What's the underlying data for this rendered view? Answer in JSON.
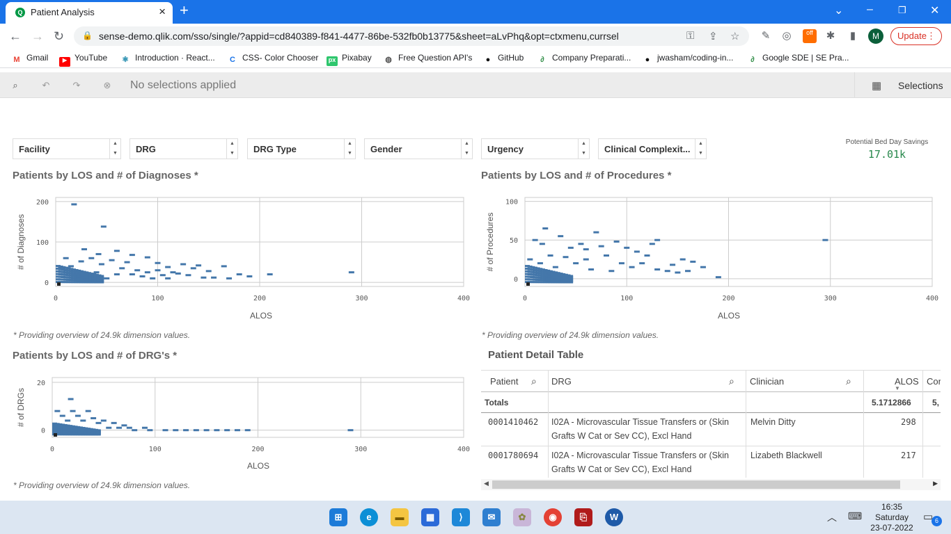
{
  "browser": {
    "tab_title": "Patient Analysis",
    "url": "sense-demo.qlik.com/sso/single/?appid=cd840389-f841-4477-86be-532fb0b13775&sheet=aLvPhq&opt=ctxmenu,currsel",
    "update_label": "Update",
    "avatar_letter": "M",
    "bookmarks": [
      "Gmail",
      "YouTube",
      "Introduction · React...",
      "CSS- Color Chooser",
      "Pixabay",
      "Free Question API's",
      "GitHub",
      "Company Preparati...",
      "jwasham/coding-in...",
      "Google SDE | SE Pra..."
    ]
  },
  "qlik_toolbar": {
    "no_selections": "No selections applied",
    "selections_label": "Selections"
  },
  "filters": [
    "Facility",
    "DRG",
    "DRG Type",
    "Gender",
    "Urgency",
    "Clinical Complexit..."
  ],
  "kpi": {
    "label": "Potential Bed Day Savings",
    "value": "17.01k"
  },
  "charts": {
    "diagnoses": {
      "title": "Patients by LOS and # of Diagnoses *",
      "note": "* Providing overview of 24.9k dimension values."
    },
    "procedures": {
      "title": "Patients by LOS and # of Procedures *",
      "note": "* Providing overview of 24.9k dimension values."
    },
    "drgs": {
      "title": "Patients by LOS and # of DRG's *",
      "note": "* Providing overview of 24.9k dimension values."
    }
  },
  "chart_data": [
    {
      "type": "scatter",
      "title": "Patients by LOS and # of Diagnoses *",
      "xlabel": "ALOS",
      "ylabel": "# of Diagnoses",
      "xlim": [
        0,
        400
      ],
      "ylim": [
        -10,
        210
      ],
      "x_ticks": [
        0,
        100,
        200,
        300,
        400
      ],
      "y_ticks": [
        0,
        100,
        200
      ],
      "points": [
        [
          18,
          193
        ],
        [
          47,
          138
        ],
        [
          28,
          82
        ],
        [
          60,
          78
        ],
        [
          42,
          70
        ],
        [
          75,
          68
        ],
        [
          10,
          60
        ],
        [
          35,
          60
        ],
        [
          90,
          62
        ],
        [
          55,
          55
        ],
        [
          25,
          52
        ],
        [
          70,
          50
        ],
        [
          100,
          48
        ],
        [
          125,
          45
        ],
        [
          140,
          42
        ],
        [
          165,
          40
        ],
        [
          110,
          38
        ],
        [
          135,
          35
        ],
        [
          150,
          28
        ],
        [
          120,
          22
        ],
        [
          180,
          20
        ],
        [
          190,
          15
        ],
        [
          155,
          12
        ],
        [
          170,
          10
        ],
        [
          85,
          15
        ],
        [
          95,
          10
        ],
        [
          5,
          35
        ],
        [
          15,
          40
        ],
        [
          45,
          45
        ],
        [
          65,
          35
        ],
        [
          80,
          30
        ],
        [
          100,
          30
        ],
        [
          115,
          25
        ],
        [
          130,
          18
        ],
        [
          145,
          12
        ],
        [
          105,
          18
        ],
        [
          210,
          20
        ],
        [
          290,
          25
        ],
        [
          30,
          8
        ],
        [
          50,
          10
        ],
        [
          60,
          20
        ],
        [
          40,
          25
        ],
        [
          20,
          20
        ],
        [
          75,
          20
        ],
        [
          90,
          25
        ],
        [
          110,
          10
        ]
      ]
    },
    {
      "type": "scatter",
      "title": "Patients by LOS and # of Procedures *",
      "xlabel": "ALOS",
      "ylabel": "# of Procedures",
      "xlim": [
        0,
        400
      ],
      "ylim": [
        -10,
        105
      ],
      "x_ticks": [
        0,
        100,
        200,
        300,
        400
      ],
      "y_ticks": [
        0,
        50,
        100
      ],
      "points": [
        [
          20,
          65
        ],
        [
          70,
          60
        ],
        [
          90,
          48
        ],
        [
          130,
          50
        ],
        [
          125,
          45
        ],
        [
          17,
          45
        ],
        [
          100,
          40
        ],
        [
          45,
          40
        ],
        [
          60,
          38
        ],
        [
          155,
          25
        ],
        [
          165,
          22
        ],
        [
          175,
          15
        ],
        [
          190,
          2
        ],
        [
          295,
          50
        ],
        [
          140,
          10
        ],
        [
          150,
          8
        ],
        [
          80,
          30
        ],
        [
          110,
          35
        ],
        [
          120,
          30
        ],
        [
          35,
          55
        ],
        [
          10,
          50
        ],
        [
          55,
          45
        ],
        [
          75,
          42
        ],
        [
          95,
          20
        ],
        [
          105,
          15
        ],
        [
          115,
          20
        ],
        [
          130,
          12
        ],
        [
          145,
          18
        ],
        [
          160,
          10
        ],
        [
          25,
          30
        ],
        [
          40,
          28
        ],
        [
          60,
          25
        ],
        [
          85,
          10
        ],
        [
          65,
          12
        ],
        [
          50,
          20
        ],
        [
          30,
          15
        ],
        [
          15,
          20
        ],
        [
          5,
          25
        ]
      ]
    },
    {
      "type": "scatter",
      "title": "Patients by LOS and # of DRG's *",
      "xlabel": "ALOS",
      "ylabel": "# of DRGs",
      "xlim": [
        0,
        400
      ],
      "ylim": [
        -3,
        22
      ],
      "x_ticks": [
        0,
        100,
        200,
        300,
        400
      ],
      "y_ticks": [
        0,
        20
      ],
      "points": [
        [
          18,
          13
        ],
        [
          5,
          8
        ],
        [
          20,
          8
        ],
        [
          35,
          8
        ],
        [
          10,
          6
        ],
        [
          25,
          6
        ],
        [
          40,
          5
        ],
        [
          15,
          4
        ],
        [
          30,
          4
        ],
        [
          50,
          4
        ],
        [
          60,
          3
        ],
        [
          45,
          3
        ],
        [
          70,
          2
        ],
        [
          90,
          1
        ],
        [
          110,
          0
        ],
        [
          130,
          0
        ],
        [
          150,
          0
        ],
        [
          170,
          0
        ],
        [
          190,
          0
        ],
        [
          290,
          0
        ],
        [
          80,
          0
        ],
        [
          95,
          0
        ],
        [
          55,
          1
        ],
        [
          65,
          1
        ],
        [
          75,
          1
        ],
        [
          120,
          0
        ],
        [
          140,
          0
        ],
        [
          160,
          0
        ],
        [
          180,
          0
        ]
      ]
    }
  ],
  "table": {
    "title": "Patient Detail Table",
    "headers": [
      "Patient",
      "DRG",
      "Clinician",
      "ALOS",
      "Cor"
    ],
    "totals_label": "Totals",
    "totals_alos": "5.1712866",
    "totals_next": "5,",
    "rows": [
      {
        "patient": "0001410462",
        "drg_line1": "I02A - Microvascular Tissue Transfers or (Skin",
        "drg_line2": "Grafts W Cat or Sev CC), Excl Hand",
        "clinician": "Melvin Ditty",
        "alos": "298"
      },
      {
        "patient": "0001780694",
        "drg_line1": "I02A - Microvascular Tissue Transfers or (Skin",
        "drg_line2": "Grafts W Cat or Sev CC), Excl Hand",
        "clinician": "Lizabeth Blackwell",
        "alos": "217"
      }
    ]
  },
  "taskbar": {
    "time": "16:35",
    "day": "Saturday",
    "date": "23-07-2022",
    "notification_count": "6"
  }
}
